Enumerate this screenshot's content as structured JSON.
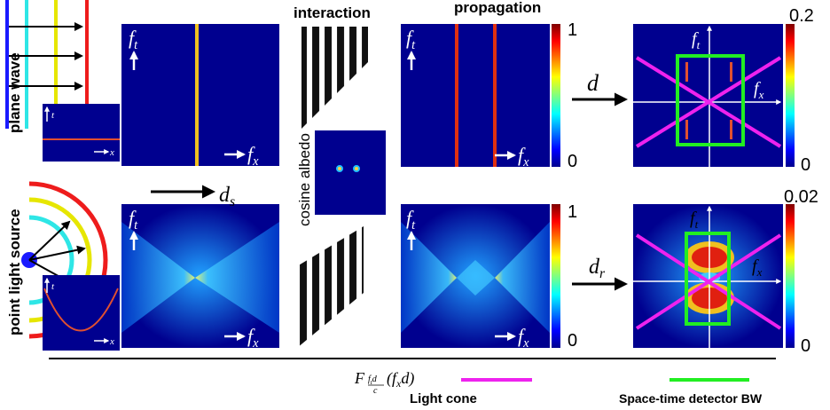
{
  "rows": {
    "top": "plane wave",
    "bottom": "point light source"
  },
  "columns": {
    "interaction": "interaction",
    "propagation": "propagation"
  },
  "albedo": "cosine albedo",
  "inset": {
    "t": "t",
    "x": "x"
  },
  "math": {
    "ft": {
      "base": "f",
      "sub": "t"
    },
    "fx": {
      "base": "f",
      "sub": "x"
    },
    "d": {
      "base": "d"
    },
    "ds": {
      "base": "d",
      "sub": "s"
    },
    "dr": {
      "base": "d",
      "sub": "r"
    }
  },
  "colorbars": [
    {
      "max": 1,
      "min": 0
    },
    {
      "max": 1,
      "min": 0
    },
    {
      "max": 0.2,
      "min": 0
    },
    {
      "max": 0.02,
      "min": 0
    }
  ],
  "formula": {
    "F": "F",
    "num": "f",
    "num_sub": "t",
    "num_rest": "d",
    "den": "c",
    "arg": "(f",
    "arg_sub": "x",
    "arg_rest": "d)"
  },
  "legend": {
    "light_cone": "Light cone",
    "detector": "Space-time detector BW"
  }
}
